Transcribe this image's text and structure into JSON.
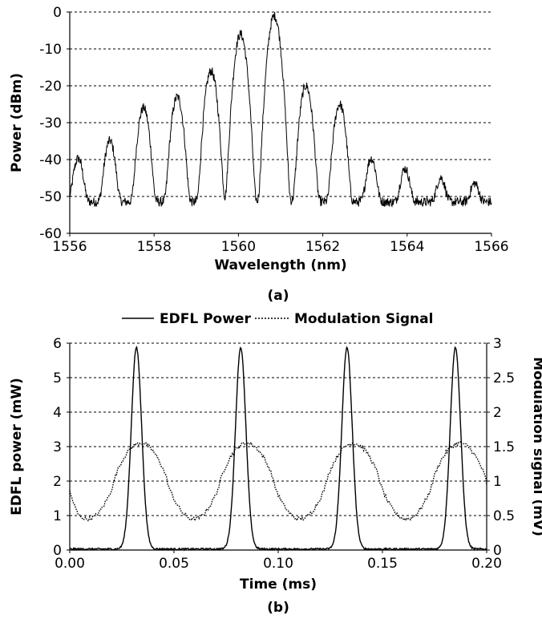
{
  "chart_data": [
    {
      "type": "line",
      "panel_label": "(a)",
      "xlabel": "Wavelength (nm)",
      "ylabel": "Power (dBm)",
      "xlim": [
        1556,
        1566
      ],
      "ylim": [
        -60,
        0
      ],
      "xticks": [
        1556,
        1558,
        1560,
        1562,
        1564,
        1566
      ],
      "yticks": [
        0,
        -10,
        -20,
        -30,
        -40,
        -50,
        -60
      ],
      "grid": "horizontal dashed",
      "floor_dbm": -51.5,
      "peaks": [
        {
          "wavelength": 1556.2,
          "power": -40
        },
        {
          "wavelength": 1556.95,
          "power": -35
        },
        {
          "wavelength": 1557.75,
          "power": -26
        },
        {
          "wavelength": 1558.55,
          "power": -23
        },
        {
          "wavelength": 1559.35,
          "power": -16
        },
        {
          "wavelength": 1560.05,
          "power": -6
        },
        {
          "wavelength": 1560.85,
          "power": -1
        },
        {
          "wavelength": 1561.6,
          "power": -20
        },
        {
          "wavelength": 1562.4,
          "power": -25
        },
        {
          "wavelength": 1563.15,
          "power": -40
        },
        {
          "wavelength": 1563.95,
          "power": -43
        },
        {
          "wavelength": 1564.8,
          "power": -46
        },
        {
          "wavelength": 1565.6,
          "power": -48
        }
      ]
    },
    {
      "type": "line",
      "panel_label": "(b)",
      "xlabel": "Time (ms)",
      "ylabel_left": "EDFL power (mW)",
      "ylabel_right": "Modulation signal (mV)",
      "xlim": [
        0,
        0.2
      ],
      "ylim_left": [
        0,
        6
      ],
      "ylim_right": [
        0,
        3
      ],
      "xticks": [
        "0.00",
        "0.05",
        "0.10",
        "0.15",
        "0.20"
      ],
      "yticks_left": [
        "0",
        "1",
        "2",
        "3",
        "4",
        "5",
        "6"
      ],
      "yticks_right": [
        "0",
        "0.5",
        "1",
        "1.5",
        "2",
        "2.5",
        "3"
      ],
      "grid": "horizontal dashed",
      "legend_position": "top",
      "series": [
        {
          "name": "EDFL Power",
          "axis": "left",
          "style": "solid",
          "pulse_peaks_time_ms": [
            0.032,
            0.082,
            0.133,
            0.185
          ],
          "pulse_peak_mw": 5.85
        },
        {
          "name": "Modulation Signal",
          "axis": "right",
          "style": "dotted",
          "period_ms": 0.051,
          "max_mv": 1.55,
          "min_mv": 0.45,
          "first_peak_time_ms": 0.034
        }
      ]
    }
  ]
}
